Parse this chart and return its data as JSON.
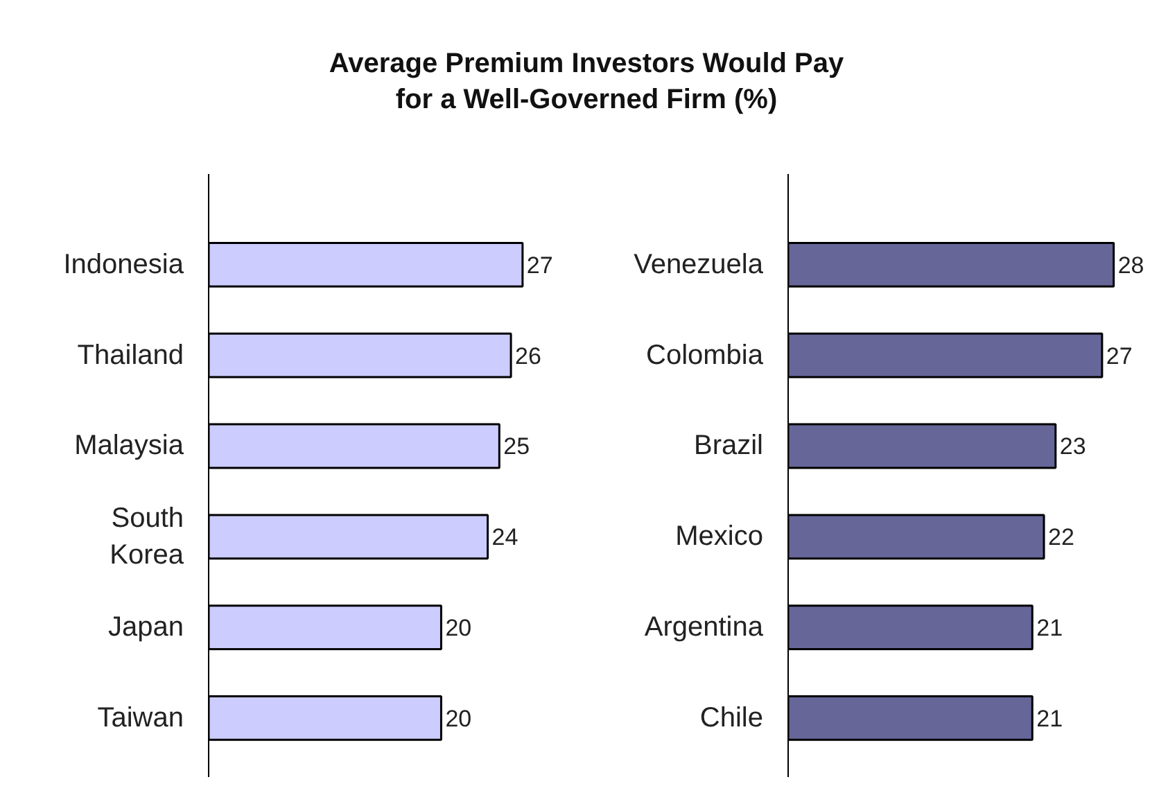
{
  "chart_data": [
    {
      "type": "bar",
      "orientation": "horizontal",
      "title": "Average Premium Investors Would Pay\nfor a Well-Governed Firm (%)",
      "categories": [
        "Indonesia",
        "Thailand",
        "Malaysia",
        "South Korea",
        "Japan",
        "Taiwan"
      ],
      "series": [
        {
          "color": "#ccccff",
          "values": [
            27,
            26,
            25,
            24,
            20,
            20
          ]
        }
      ],
      "data_labels": true,
      "grid": false,
      "tick_labels": "y"
    },
    {
      "type": "bar",
      "orientation": "horizontal",
      "categories": [
        "Venezuela",
        "Colombia",
        "Brazil",
        "Mexico",
        "Argentina",
        "Chile"
      ],
      "series": [
        {
          "color": "#666699",
          "values": [
            28,
            27,
            23,
            22,
            21,
            21
          ]
        }
      ],
      "data_labels": true,
      "grid": false,
      "tick_labels": "y"
    }
  ]
}
